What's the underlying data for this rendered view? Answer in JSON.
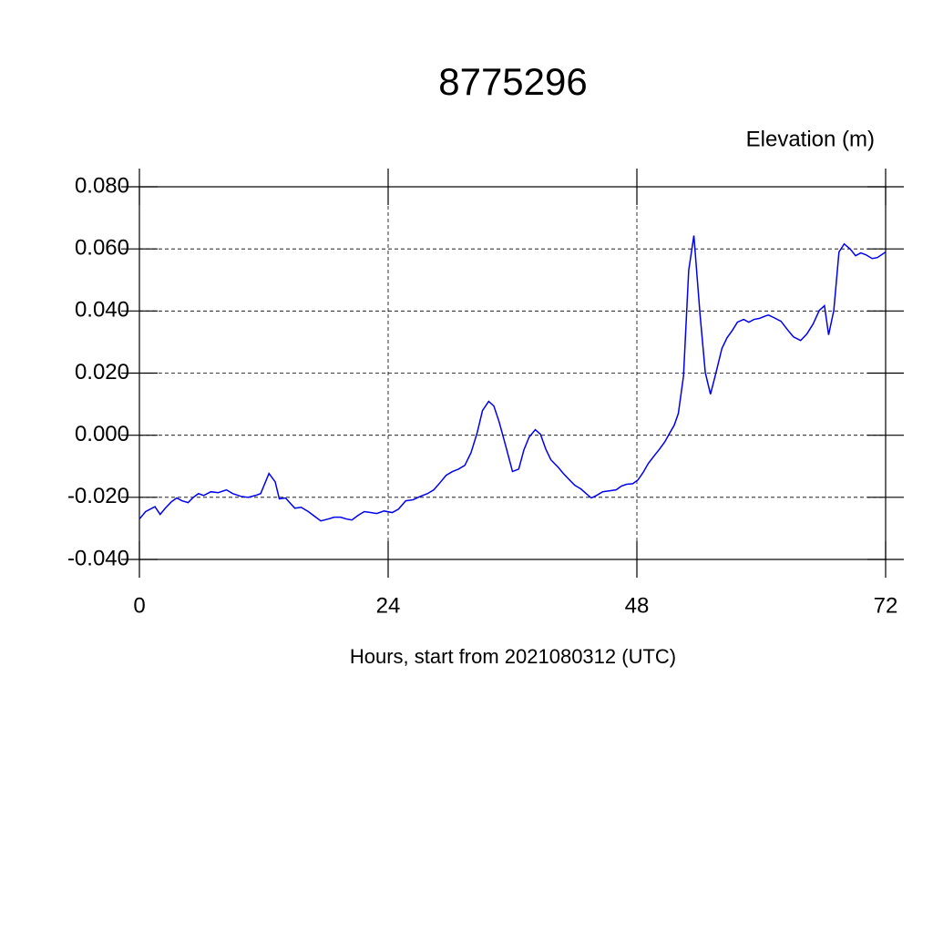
{
  "chart_data": {
    "type": "line",
    "title": "8775296",
    "subtitle": "Elevation (m)",
    "x_label": "Hours, start from 2021080312 (UTC)",
    "xlim": [
      0,
      72
    ],
    "xticks": [
      0,
      24,
      48,
      72
    ],
    "ylim": [
      -0.04,
      0.08
    ],
    "yticks": [
      {
        "value": -0.04,
        "label": "-0.040"
      },
      {
        "value": -0.02,
        "label": "-0.020"
      },
      {
        "value": 0,
        "label": "0.000"
      },
      {
        "value": 0.02,
        "label": "0.020"
      },
      {
        "value": 0.04,
        "label": "0.040"
      },
      {
        "value": 0.06,
        "label": "0.060"
      },
      {
        "value": 0.08,
        "label": "0.080"
      }
    ],
    "grid": true,
    "x": [
      0,
      0.6,
      1.5,
      2,
      2.5,
      3.1,
      3.6,
      4.1,
      4.7,
      5.2,
      5.7,
      6.2,
      6.9,
      7.6,
      8.4,
      9,
      9.8,
      10.5,
      11.2,
      11.7,
      12.5,
      13.1,
      13.5,
      14.1,
      14.5,
      15,
      15.6,
      16.3,
      16.9,
      17.5,
      18.2,
      18.8,
      19.4,
      20,
      20.5,
      21.1,
      21.7,
      22.3,
      22.9,
      23.6,
      24.4,
      25,
      25.7,
      26.4,
      27.1,
      27.8,
      28.4,
      29,
      29.6,
      30.2,
      30.8,
      31.4,
      32,
      32.6,
      33.1,
      33.7,
      34.2,
      34.7,
      35.3,
      36,
      36.6,
      37.1,
      37.6,
      38.2,
      38.7,
      39.2,
      39.7,
      40.4,
      40.9,
      41.5,
      42,
      42.6,
      43.1,
      43.6,
      44.1,
      44.7,
      45.4,
      46,
      46.5,
      47,
      47.6,
      48.1,
      48.6,
      49.1,
      49.7,
      50.2,
      50.7,
      51.2,
      51.6,
      52,
      52.5,
      53,
      53.5,
      54.1,
      54.6,
      55.1,
      55.6,
      56.2,
      56.7,
      57.2,
      57.7,
      58.3,
      58.8,
      59.3,
      59.8,
      60.4,
      60.7,
      61.2,
      61.9,
      62.6,
      63.1,
      63.8,
      64.4,
      65,
      65.6,
      66.1,
      66.5,
      67,
      67.5,
      68,
      68.6,
      69.1,
      69.6,
      70.1,
      70.7,
      71.2,
      72
    ],
    "series": [
      {
        "name": "Elevation",
        "color": "#0000ee",
        "values": [
          -0.027,
          -0.0246,
          -0.023,
          -0.0255,
          -0.0235,
          -0.0214,
          -0.0202,
          -0.0211,
          -0.0217,
          -0.02,
          -0.0188,
          -0.0194,
          -0.0182,
          -0.0185,
          -0.0176,
          -0.0188,
          -0.0197,
          -0.02,
          -0.0194,
          -0.0188,
          -0.0123,
          -0.015,
          -0.0205,
          -0.0202,
          -0.0217,
          -0.0235,
          -0.0232,
          -0.0246,
          -0.0261,
          -0.0276,
          -0.027,
          -0.0264,
          -0.0264,
          -0.027,
          -0.0273,
          -0.0258,
          -0.0246,
          -0.0249,
          -0.0252,
          -0.0244,
          -0.0249,
          -0.0238,
          -0.0211,
          -0.0208,
          -0.0197,
          -0.0188,
          -0.0176,
          -0.0153,
          -0.0129,
          -0.0117,
          -0.0109,
          -0.0097,
          -0.0056,
          0.0009,
          0.0079,
          0.0109,
          0.0094,
          0.0044,
          -0.0029,
          -0.0117,
          -0.0109,
          -0.0047,
          -0.0006,
          0.0018,
          0.0003,
          -0.0044,
          -0.0079,
          -0.0103,
          -0.0123,
          -0.0144,
          -0.0161,
          -0.0173,
          -0.0188,
          -0.0202,
          -0.0194,
          -0.0182,
          -0.0179,
          -0.0176,
          -0.0164,
          -0.0158,
          -0.0156,
          -0.0144,
          -0.012,
          -0.0091,
          -0.0065,
          -0.0044,
          -0.0021,
          0.0009,
          0.0032,
          0.007,
          0.0191,
          0.0531,
          0.0643,
          0.0387,
          0.0202,
          0.0132,
          0.0197,
          0.0279,
          0.0314,
          0.0337,
          0.0364,
          0.0373,
          0.0364,
          0.0373,
          0.0376,
          0.0384,
          0.0387,
          0.0379,
          0.0367,
          0.0337,
          0.0317,
          0.0305,
          0.0326,
          0.0358,
          0.0402,
          0.0417,
          0.0323,
          0.0402,
          0.059,
          0.0616,
          0.0599,
          0.0578,
          0.0587,
          0.0581,
          0.0569,
          0.0572,
          0.059
        ]
      }
    ]
  }
}
